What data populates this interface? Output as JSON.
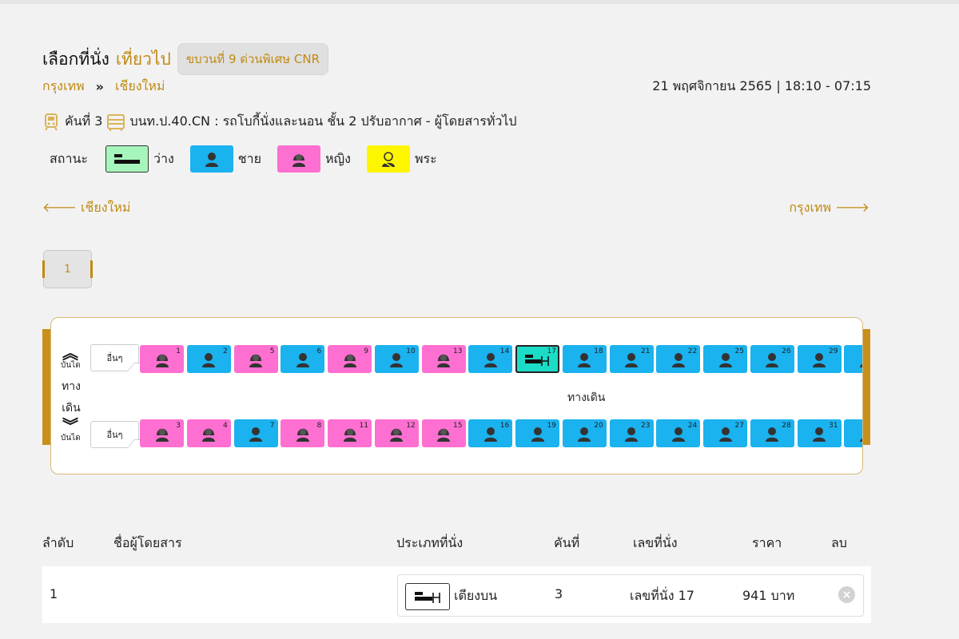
{
  "header": {
    "title": "เลือกที่นั่ง",
    "trip": "เที่ยวไป",
    "train": "ขบวนที่  9  ด่วนพิเศษ CNR",
    "origin": "กรุงเทพ",
    "destination": "เชียงใหม่",
    "date_time": "21 พฤศจิกายน 2565 | 18:10 - 07:15"
  },
  "car": {
    "number_label": "คันที่ 3",
    "description": "บนท.ป.40.CN : รถโบกี้นั่งและนอน ชั้น 2 ปรับอากาศ - ผู้โดยสารทั่วไป"
  },
  "legend": {
    "label": "สถานะ",
    "items": [
      {
        "label": "ว่าง",
        "color": "#a6f5bd",
        "icon": "bed-icon"
      },
      {
        "label": "ชาย",
        "color": "#1ab2ef",
        "icon": "male-passenger-icon"
      },
      {
        "label": "หญิง",
        "color": "#fd6fd0",
        "icon": "female-passenger-icon"
      },
      {
        "label": "พระ",
        "color": "#fdf600",
        "icon": "monk-icon"
      }
    ]
  },
  "nav": {
    "left": "เชียงใหม่",
    "right": "กรุงเทพ"
  },
  "pagination": {
    "current": "1"
  },
  "coach": {
    "stairs_label": "บันได",
    "aisle_vertical": [
      "ทาง",
      "เดิน"
    ],
    "aisle_label": "ทางเดิน",
    "other_label": "อื่นๆ",
    "top_row": [
      {
        "num": "1",
        "status": "female"
      },
      {
        "num": "2",
        "status": "male"
      },
      {
        "num": "5",
        "status": "female"
      },
      {
        "num": "6",
        "status": "male"
      },
      {
        "num": "9",
        "status": "female"
      },
      {
        "num": "10",
        "status": "male"
      },
      {
        "num": "13",
        "status": "female"
      },
      {
        "num": "14",
        "status": "male"
      },
      {
        "num": "17",
        "status": "selected"
      },
      {
        "num": "18",
        "status": "male"
      },
      {
        "num": "21",
        "status": "male"
      },
      {
        "num": "22",
        "status": "male"
      },
      {
        "num": "25",
        "status": "male"
      },
      {
        "num": "26",
        "status": "male"
      },
      {
        "num": "29",
        "status": "male"
      },
      {
        "num": "",
        "status": "male"
      }
    ],
    "bottom_row": [
      {
        "num": "3",
        "status": "female"
      },
      {
        "num": "4",
        "status": "female"
      },
      {
        "num": "7",
        "status": "male"
      },
      {
        "num": "8",
        "status": "female"
      },
      {
        "num": "11",
        "status": "female"
      },
      {
        "num": "12",
        "status": "female"
      },
      {
        "num": "15",
        "status": "female"
      },
      {
        "num": "16",
        "status": "male"
      },
      {
        "num": "19",
        "status": "male"
      },
      {
        "num": "20",
        "status": "male"
      },
      {
        "num": "23",
        "status": "male"
      },
      {
        "num": "24",
        "status": "male"
      },
      {
        "num": "27",
        "status": "male"
      },
      {
        "num": "28",
        "status": "male"
      },
      {
        "num": "31",
        "status": "male"
      },
      {
        "num": "",
        "status": "male"
      }
    ]
  },
  "table": {
    "headers": {
      "order": "ลำดับ",
      "name": "ชื่อผู้โดยสาร",
      "seat_type": "ประเภทที่นั่ง",
      "car": "คันที่",
      "seat_no": "เลขที่นั่ง",
      "price": "ราคา",
      "delete": "ลบ"
    },
    "rows": [
      {
        "order": "1",
        "name": "",
        "seat_type": "เตียงบน",
        "car": "3",
        "seat_no": "เลขที่นั่ง 17",
        "price": "941 บาท"
      }
    ]
  }
}
